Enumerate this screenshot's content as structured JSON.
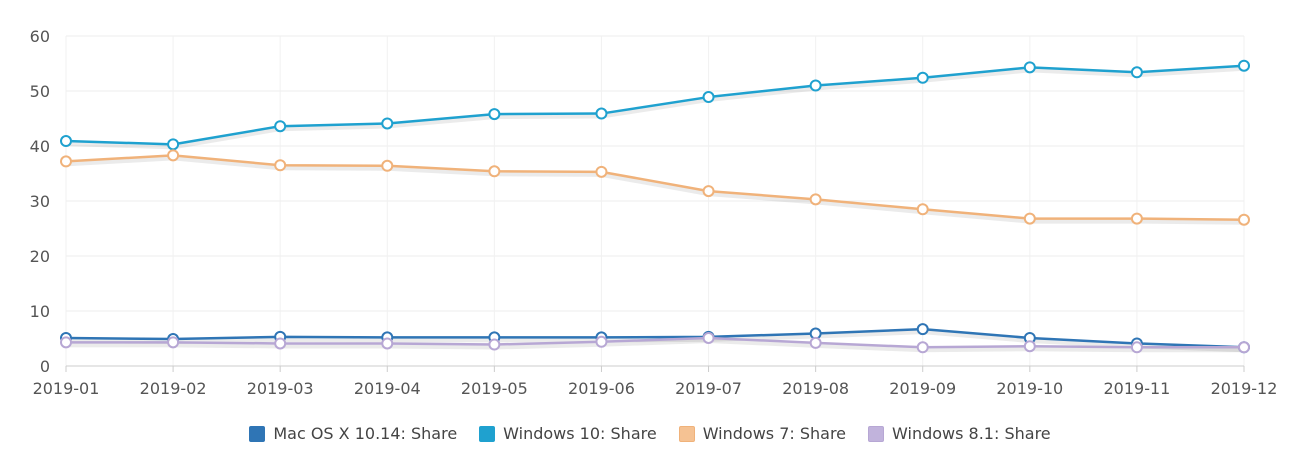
{
  "chart_data": {
    "type": "line",
    "x": [
      "2019-01",
      "2019-02",
      "2019-03",
      "2019-04",
      "2019-05",
      "2019-06",
      "2019-07",
      "2019-08",
      "2019-09",
      "2019-10",
      "2019-11",
      "2019-12"
    ],
    "ylim": [
      0,
      60
    ],
    "yticks": [
      0,
      10,
      20,
      30,
      40,
      50,
      60
    ],
    "grid": true,
    "legend_position": "bottom",
    "series": [
      {
        "name": "Mac OS X 10.14: Share",
        "color": "#2f75b5",
        "fill": "#2f75b5",
        "values": [
          5.1,
          4.9,
          5.3,
          5.2,
          5.2,
          5.2,
          5.3,
          5.9,
          6.7,
          5.1,
          4.1,
          3.4
        ]
      },
      {
        "name": "Windows 10: Share",
        "color": "#1fa1cf",
        "fill": "#1fa1cf",
        "values": [
          40.9,
          40.3,
          43.6,
          44.1,
          45.8,
          45.9,
          48.9,
          51.0,
          52.4,
          54.3,
          53.4,
          54.6
        ]
      },
      {
        "name": "Windows 7: Share",
        "color": "#f0b27a",
        "fill": "#f5c293",
        "values": [
          37.2,
          38.3,
          36.5,
          36.4,
          35.4,
          35.3,
          31.8,
          30.3,
          28.5,
          26.8,
          26.8,
          26.6
        ]
      },
      {
        "name": "Windows 8.1: Share",
        "color": "#b7a7d4",
        "fill": "#c1b3dc",
        "values": [
          4.3,
          4.3,
          4.1,
          4.1,
          3.9,
          4.4,
          5.1,
          4.2,
          3.4,
          3.6,
          3.4,
          3.4
        ]
      }
    ]
  }
}
